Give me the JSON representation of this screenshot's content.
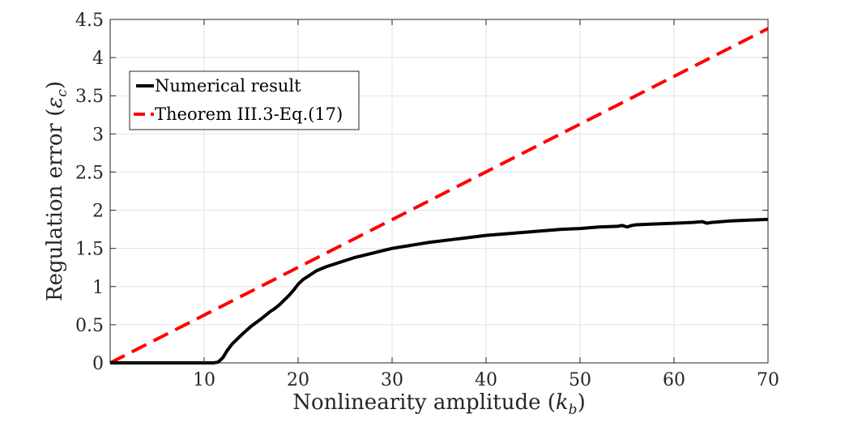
{
  "chart_data": {
    "type": "line",
    "title": "",
    "xlabel": "Nonlinearity amplitude (k_b)",
    "xlabel_main": "Nonlinearity amplitude (",
    "xlabel_symbol": "k",
    "xlabel_sub": "b",
    "xlabel_close": ")",
    "ylabel": "Regulation error (ε_c)",
    "ylabel_main": "Regulation error (",
    "ylabel_symbol": "ε",
    "ylabel_sub": "c",
    "ylabel_close": ")",
    "xlim": [
      0,
      70
    ],
    "ylim": [
      0,
      4.5
    ],
    "xticks": [
      10,
      20,
      30,
      40,
      50,
      60,
      70
    ],
    "xtick_labels": [
      "10",
      "20",
      "30",
      "40",
      "50",
      "60",
      "70"
    ],
    "yticks": [
      0,
      0.5,
      1,
      1.5,
      2,
      2.5,
      3,
      3.5,
      4,
      4.5
    ],
    "ytick_labels": [
      "0",
      "0.5",
      "1",
      "1.5",
      "2",
      "2.5",
      "3",
      "3.5",
      "4",
      "4.5"
    ],
    "grid": true,
    "legend_position": "top-left",
    "series": [
      {
        "name": "Numerical result",
        "color": "#000000",
        "style": "solid",
        "x": [
          0,
          5,
          10,
          11,
          11.5,
          12,
          12.5,
          13,
          14,
          15,
          16,
          17,
          17.5,
          18,
          18.5,
          19,
          19.5,
          20,
          20.5,
          21,
          21.5,
          22,
          23,
          24,
          25,
          26,
          27,
          28,
          29,
          30,
          32,
          34,
          36,
          38,
          40,
          42,
          44,
          46,
          48,
          50,
          52,
          54,
          54.5,
          55,
          55.5,
          56,
          58,
          60,
          62,
          63,
          63.5,
          64,
          65,
          66,
          68,
          70
        ],
        "y": [
          0,
          0,
          0,
          0,
          0.01,
          0.07,
          0.17,
          0.25,
          0.37,
          0.48,
          0.57,
          0.67,
          0.71,
          0.76,
          0.82,
          0.88,
          0.95,
          1.03,
          1.09,
          1.13,
          1.17,
          1.21,
          1.26,
          1.3,
          1.34,
          1.38,
          1.41,
          1.44,
          1.47,
          1.5,
          1.54,
          1.58,
          1.61,
          1.64,
          1.67,
          1.69,
          1.71,
          1.73,
          1.75,
          1.76,
          1.78,
          1.79,
          1.8,
          1.78,
          1.8,
          1.81,
          1.82,
          1.83,
          1.84,
          1.85,
          1.83,
          1.84,
          1.85,
          1.86,
          1.87,
          1.88
        ]
      },
      {
        "name": "Theorem III.3-Eq.(17)",
        "color": "#ff0000",
        "style": "dashed",
        "x": [
          0,
          70
        ],
        "y": [
          0,
          4.38
        ]
      }
    ]
  }
}
